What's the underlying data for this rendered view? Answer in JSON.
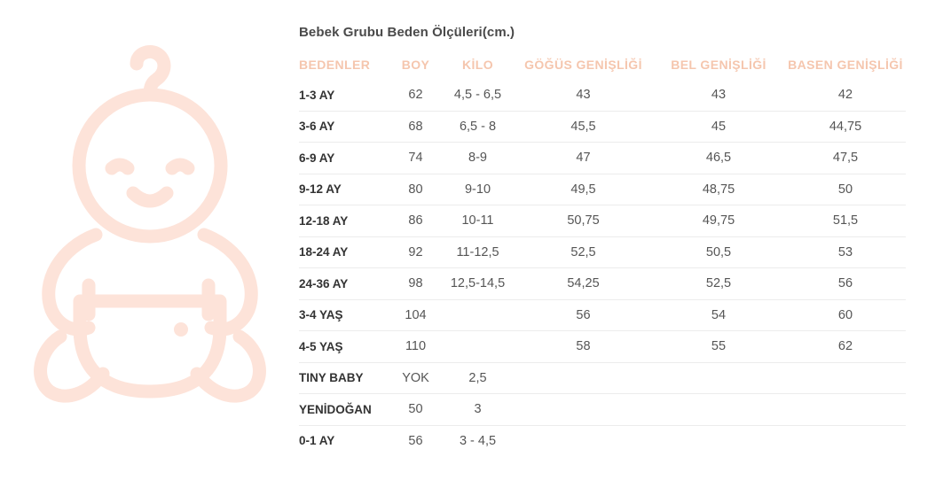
{
  "title": "Bebek Grubu Beden Ölçüleri(cm.)",
  "illustration": "baby-hanger-icon",
  "colors": {
    "accent": "#f5c6ae",
    "illustration": "#fde3d9"
  },
  "headers": [
    "BEDENLER",
    "BOY",
    "KİLO",
    "GÖĞÜS GENİŞLİĞİ",
    "BEL GENİŞLİĞİ",
    "BASEN GENİŞLİĞİ"
  ],
  "rows": [
    [
      "1-3 AY",
      "62",
      "4,5 - 6,5",
      "43",
      "43",
      "42"
    ],
    [
      "3-6 AY",
      "68",
      "6,5 - 8",
      "45,5",
      "45",
      "44,75"
    ],
    [
      "6-9 AY",
      "74",
      "8-9",
      "47",
      "46,5",
      "47,5"
    ],
    [
      "9-12 AY",
      "80",
      "9-10",
      "49,5",
      "48,75",
      "50"
    ],
    [
      "12-18 AY",
      "86",
      "10-11",
      "50,75",
      "49,75",
      "51,5"
    ],
    [
      "18-24 AY",
      "92",
      "11-12,5",
      "52,5",
      "50,5",
      "53"
    ],
    [
      "24-36 AY",
      "98",
      "12,5-14,5",
      "54,25",
      "52,5",
      "56"
    ],
    [
      "3-4 YAŞ",
      "104",
      "",
      "56",
      "54",
      "60"
    ],
    [
      "4-5 YAŞ",
      "110",
      "",
      "58",
      "55",
      "62"
    ],
    [
      "TINY BABY",
      "YOK",
      "2,5",
      "",
      "",
      ""
    ],
    [
      "YENİDOĞAN",
      "50",
      "3",
      "",
      "",
      ""
    ],
    [
      "0-1 AY",
      "56",
      "3 - 4,5",
      "",
      "",
      ""
    ]
  ]
}
